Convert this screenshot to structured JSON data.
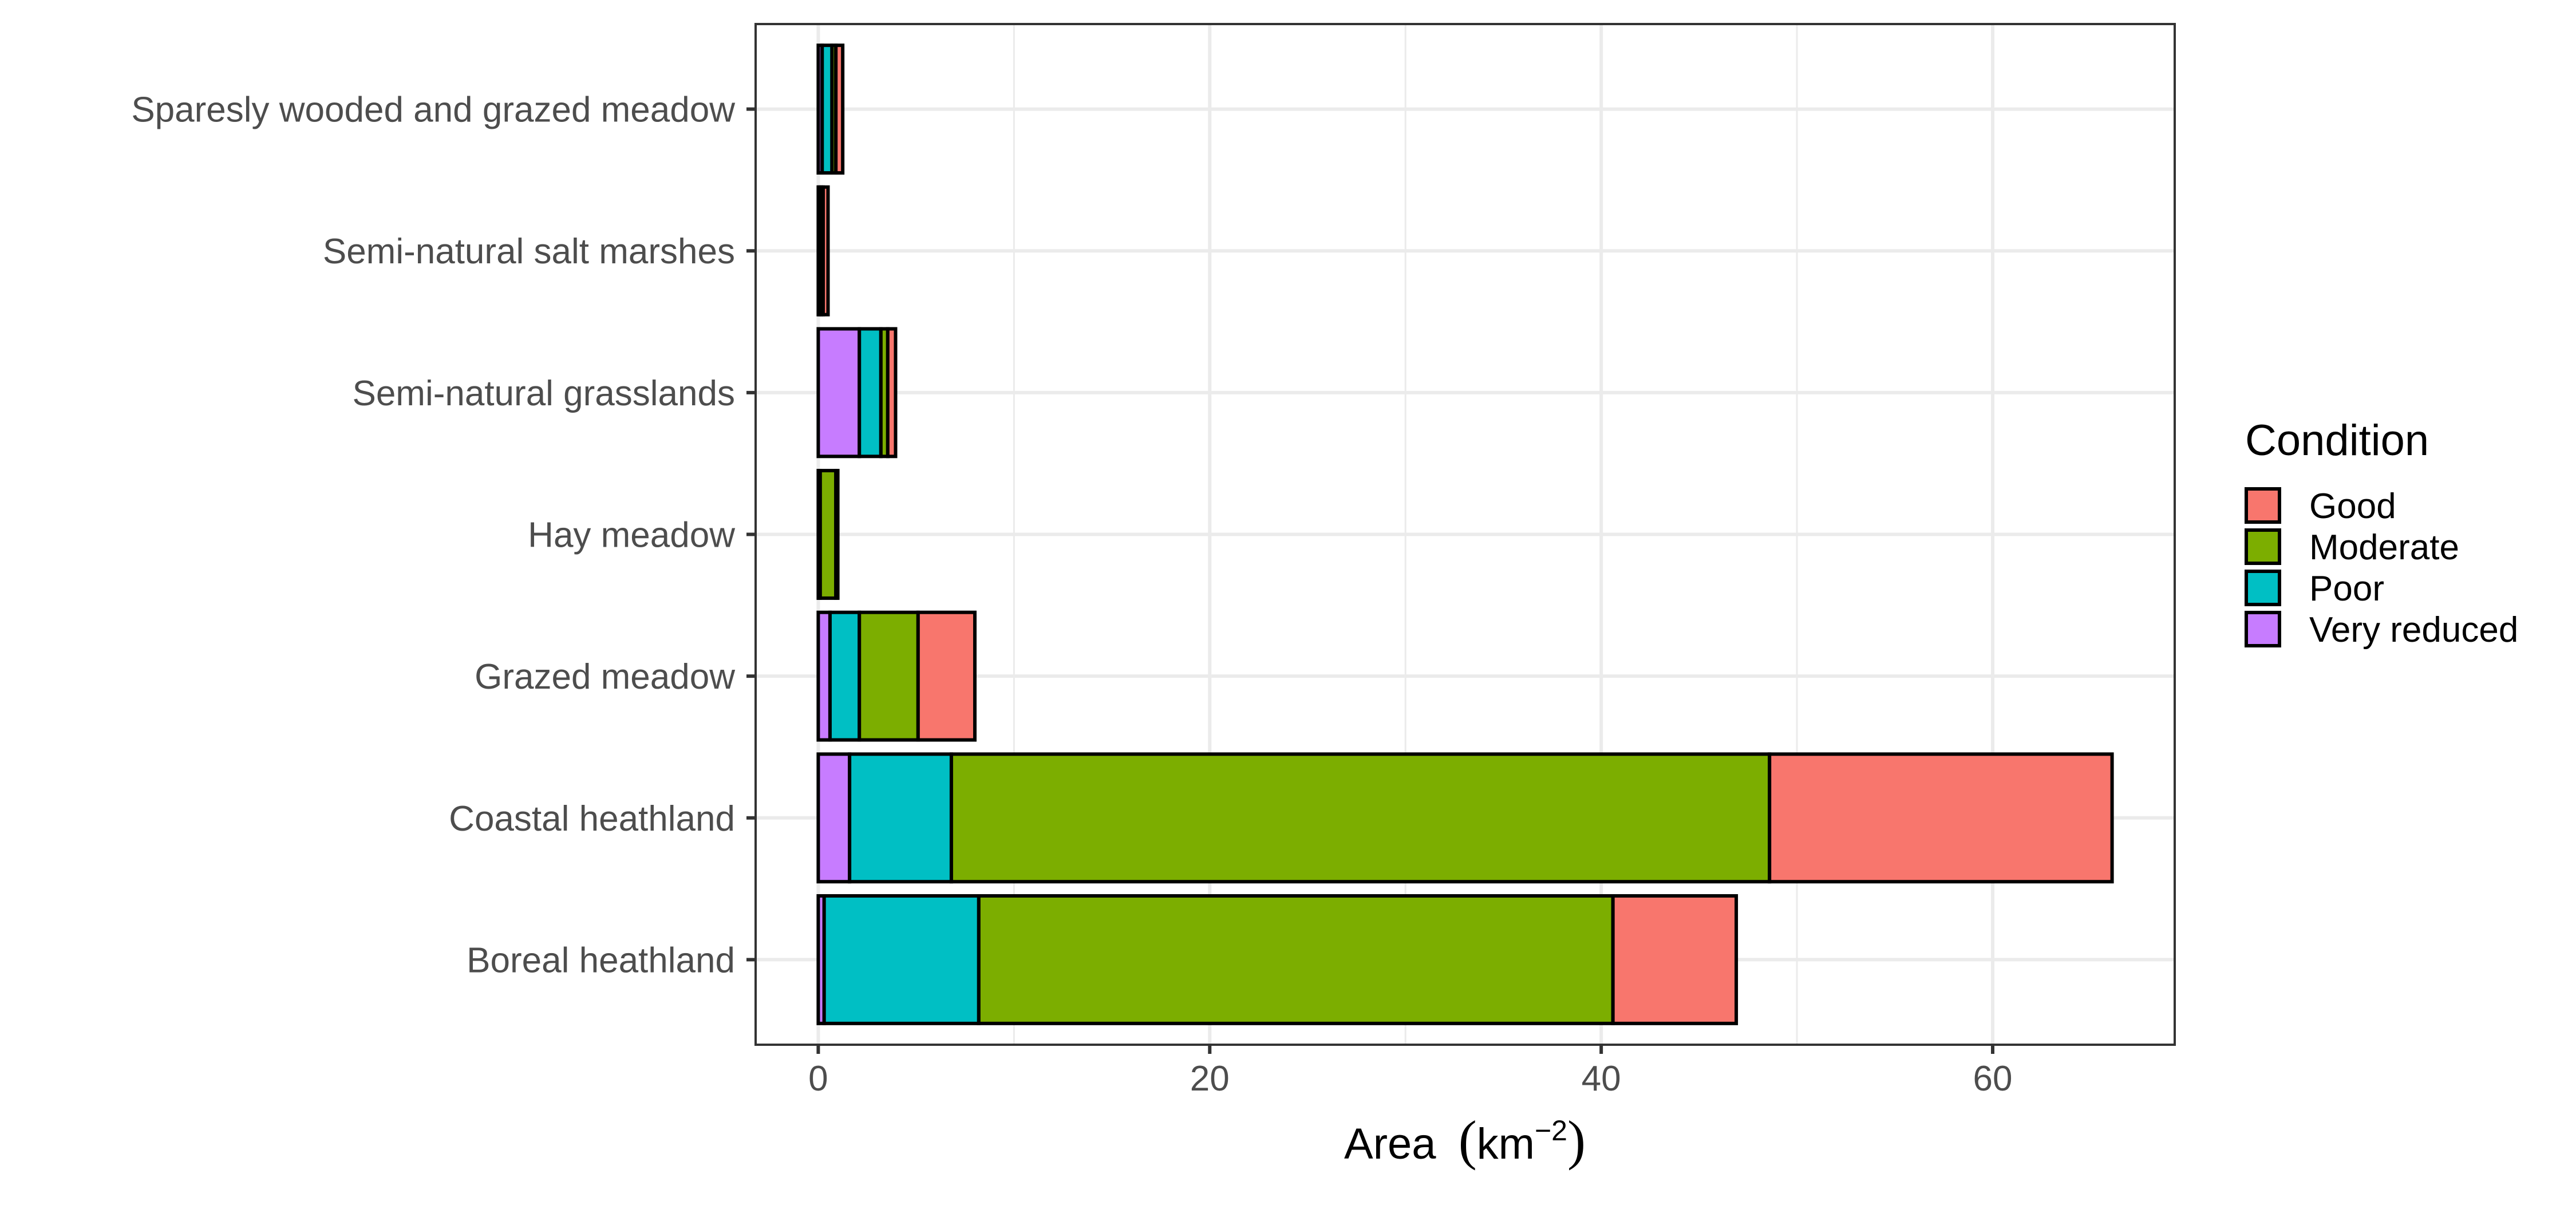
{
  "chart_data": {
    "type": "bar",
    "orientation": "horizontal",
    "stacked": true,
    "title": "",
    "xlabel": "Area",
    "xlabel_unit": "km",
    "xlabel_unit_exponent": "−2",
    "ylabel": "",
    "xlim": [
      -3.2,
      69.3
    ],
    "x_ticks": [
      0,
      20,
      40,
      60
    ],
    "x_tick_labels": [
      "0",
      "20",
      "40",
      "60"
    ],
    "grid": true,
    "legend_title": "Condition",
    "legend_position": "right",
    "categories": [
      "Boreal heathland",
      "Coastal heathland",
      "Grazed meadow",
      "Hay meadow",
      "Semi-natural grasslands",
      "Semi-natural salt marshes",
      "Sparesly wooded and grazed meadow"
    ],
    "stack_order": [
      "Very reduced",
      "Poor",
      "Moderate",
      "Good"
    ],
    "series": [
      {
        "name": "Good",
        "color": "#F8766D",
        "values": [
          6.3,
          17.5,
          2.9,
          0.1,
          0.4,
          0.25,
          0.35
        ]
      },
      {
        "name": "Moderate",
        "color": "#7CAE00",
        "values": [
          32.4,
          41.8,
          3.0,
          0.8,
          0.35,
          0.1,
          0.2
        ]
      },
      {
        "name": "Poor",
        "color": "#00BFC4",
        "values": [
          7.9,
          5.2,
          1.5,
          0.05,
          1.1,
          0.1,
          0.5
        ]
      },
      {
        "name": "Very reduced",
        "color": "#C77CFF",
        "values": [
          0.3,
          1.6,
          0.6,
          0.05,
          2.1,
          0.05,
          0.2
        ]
      }
    ]
  }
}
